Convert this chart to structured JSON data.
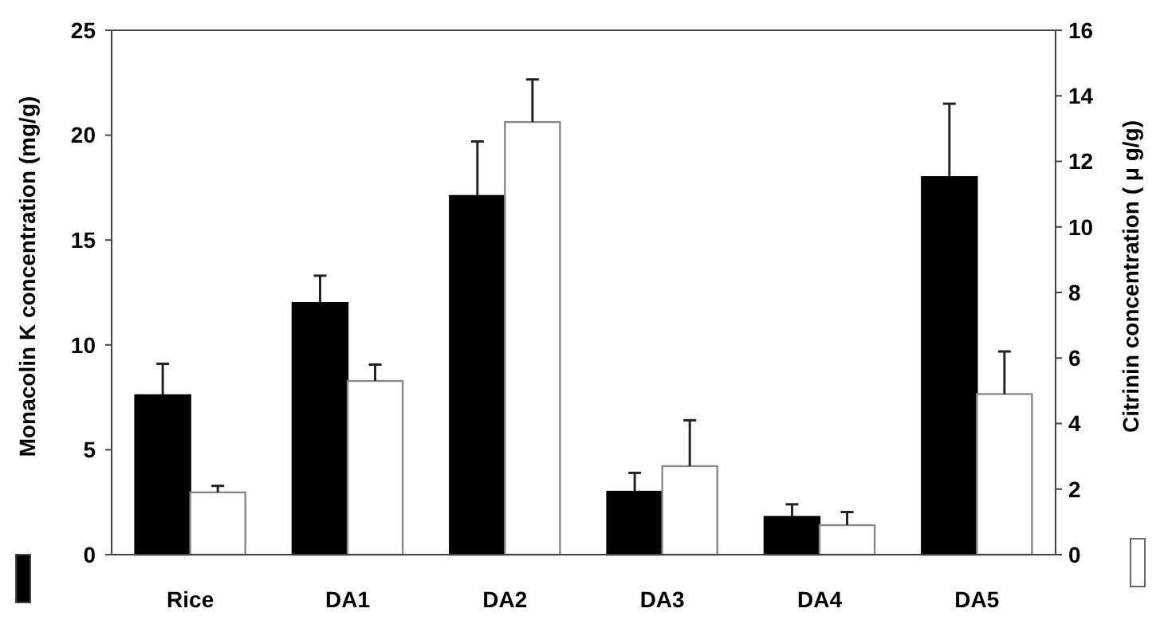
{
  "chart_data": {
    "type": "bar",
    "ylabel": "Monacolin K concentration (mg/g)",
    "y2label": "Citrinin concentration ( μ g/g)",
    "categories": [
      "Rice",
      "DA1",
      "DA2",
      "DA3",
      "DA4",
      "DA5"
    ],
    "series": [
      {
        "color": "#000000",
        "values": [
          7.6,
          12.0,
          17.1,
          3.0,
          1.8,
          18.0
        ],
        "errors": [
          [
            7.6,
            9.1
          ],
          [
            12.0,
            13.3
          ],
          [
            17.1,
            19.7
          ],
          [
            3.0,
            3.9
          ],
          [
            1.8,
            2.4
          ],
          [
            18.0,
            21.5
          ]
        ]
      },
      {
        "color": "#ffffff",
        "axis": "y2",
        "values": [
          1.9,
          5.3,
          13.2,
          2.7,
          0.9,
          4.9
        ],
        "errors": [
          [
            1.9,
            2.1
          ],
          [
            5.3,
            5.8
          ],
          [
            13.2,
            14.5
          ],
          [
            2.7,
            4.1
          ],
          [
            0.9,
            1.3
          ],
          [
            4.9,
            6.2
          ]
        ]
      }
    ],
    "ylim": [
      0,
      25
    ],
    "yticks": [
      0,
      5,
      10,
      15,
      20,
      25
    ],
    "y2lim": [
      0,
      16
    ],
    "y2ticks": [
      0,
      2,
      4,
      6,
      8,
      10,
      12,
      14,
      16
    ]
  }
}
